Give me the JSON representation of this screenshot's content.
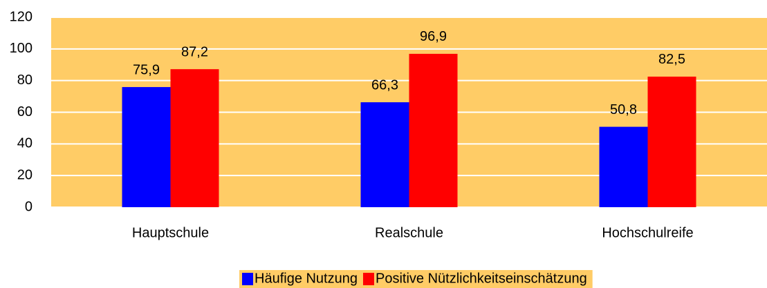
{
  "chart_data": {
    "type": "bar",
    "categories": [
      "Hauptschule",
      "Realschule",
      "Hochschulreife"
    ],
    "series": [
      {
        "name": "Häufige Nutzung",
        "color": "#0000ff",
        "values": [
          75.9,
          66.3,
          50.8
        ],
        "value_labels": [
          "75,9",
          "66,3",
          "50,8"
        ]
      },
      {
        "name": "Positive Nützlichkeitseinschätzung",
        "color": "#ff0000",
        "values": [
          87.2,
          96.9,
          82.5
        ],
        "value_labels": [
          "87,2",
          "96,9",
          "82,5"
        ]
      }
    ],
    "ylim": [
      0,
      120
    ],
    "yticks": [
      0,
      20,
      40,
      60,
      80,
      100,
      120
    ],
    "grid": true,
    "grid_color": "#ffffff",
    "plot_background": "#ffcc66",
    "legend": "bottom"
  }
}
